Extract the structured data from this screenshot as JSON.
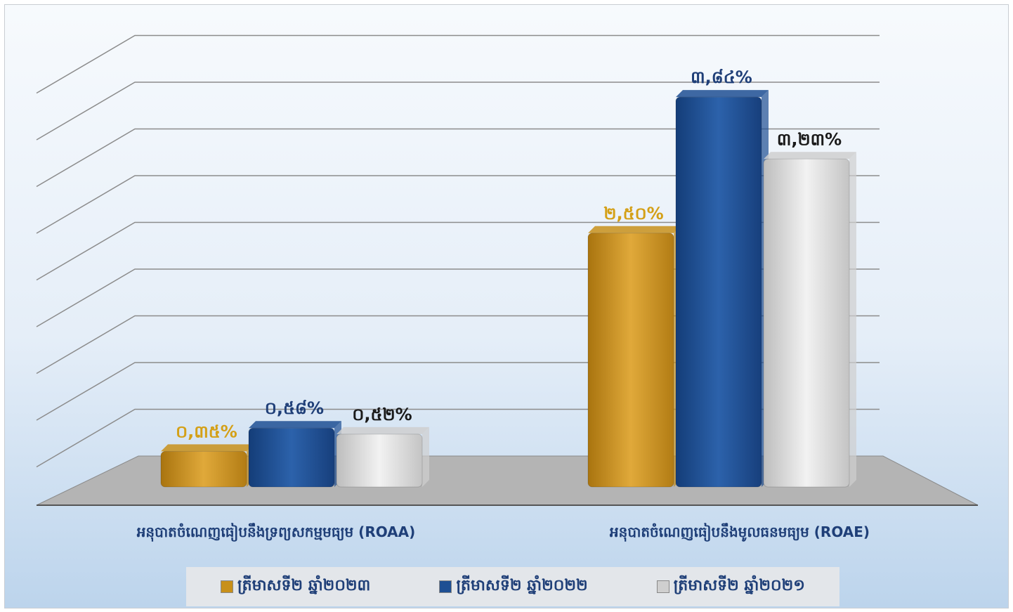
{
  "chart_data": {
    "type": "bar",
    "categories": [
      "អនុបាតចំណេញធៀបនឹងទ្រព្យសកម្មមធ្យម (ROAA)",
      "អនុបាតចំណេញធៀបនឹងមូលធនមធ្យម (ROAE)"
    ],
    "series": [
      {
        "name": "ត្រីមាសទី២ ឆ្នាំ២០២៣",
        "values": [
          0.35,
          2.5
        ],
        "labels": [
          "០,៣៥%",
          "២,៥០%"
        ],
        "color": "#c8901a",
        "label_color": "#d4a017"
      },
      {
        "name": "ត្រីមាសទី២ ឆ្នាំ២០២២",
        "values": [
          0.58,
          3.84
        ],
        "labels": [
          "០,៥៨%",
          "៣,៨៤%"
        ],
        "color": "#1e4f93",
        "label_color": "#1f3f78"
      },
      {
        "name": "ត្រីមាសទី២ ឆ្នាំ២០២១",
        "values": [
          0.52,
          3.23
        ],
        "labels": [
          "០,៥២%",
          "៣,២៣%"
        ],
        "color": "#cfcfcf",
        "label_color": "#1a1a1a"
      }
    ],
    "ylim": [
      0,
      4
    ],
    "grid": true,
    "legend_position": "bottom",
    "label_color": "#1f3f78"
  }
}
